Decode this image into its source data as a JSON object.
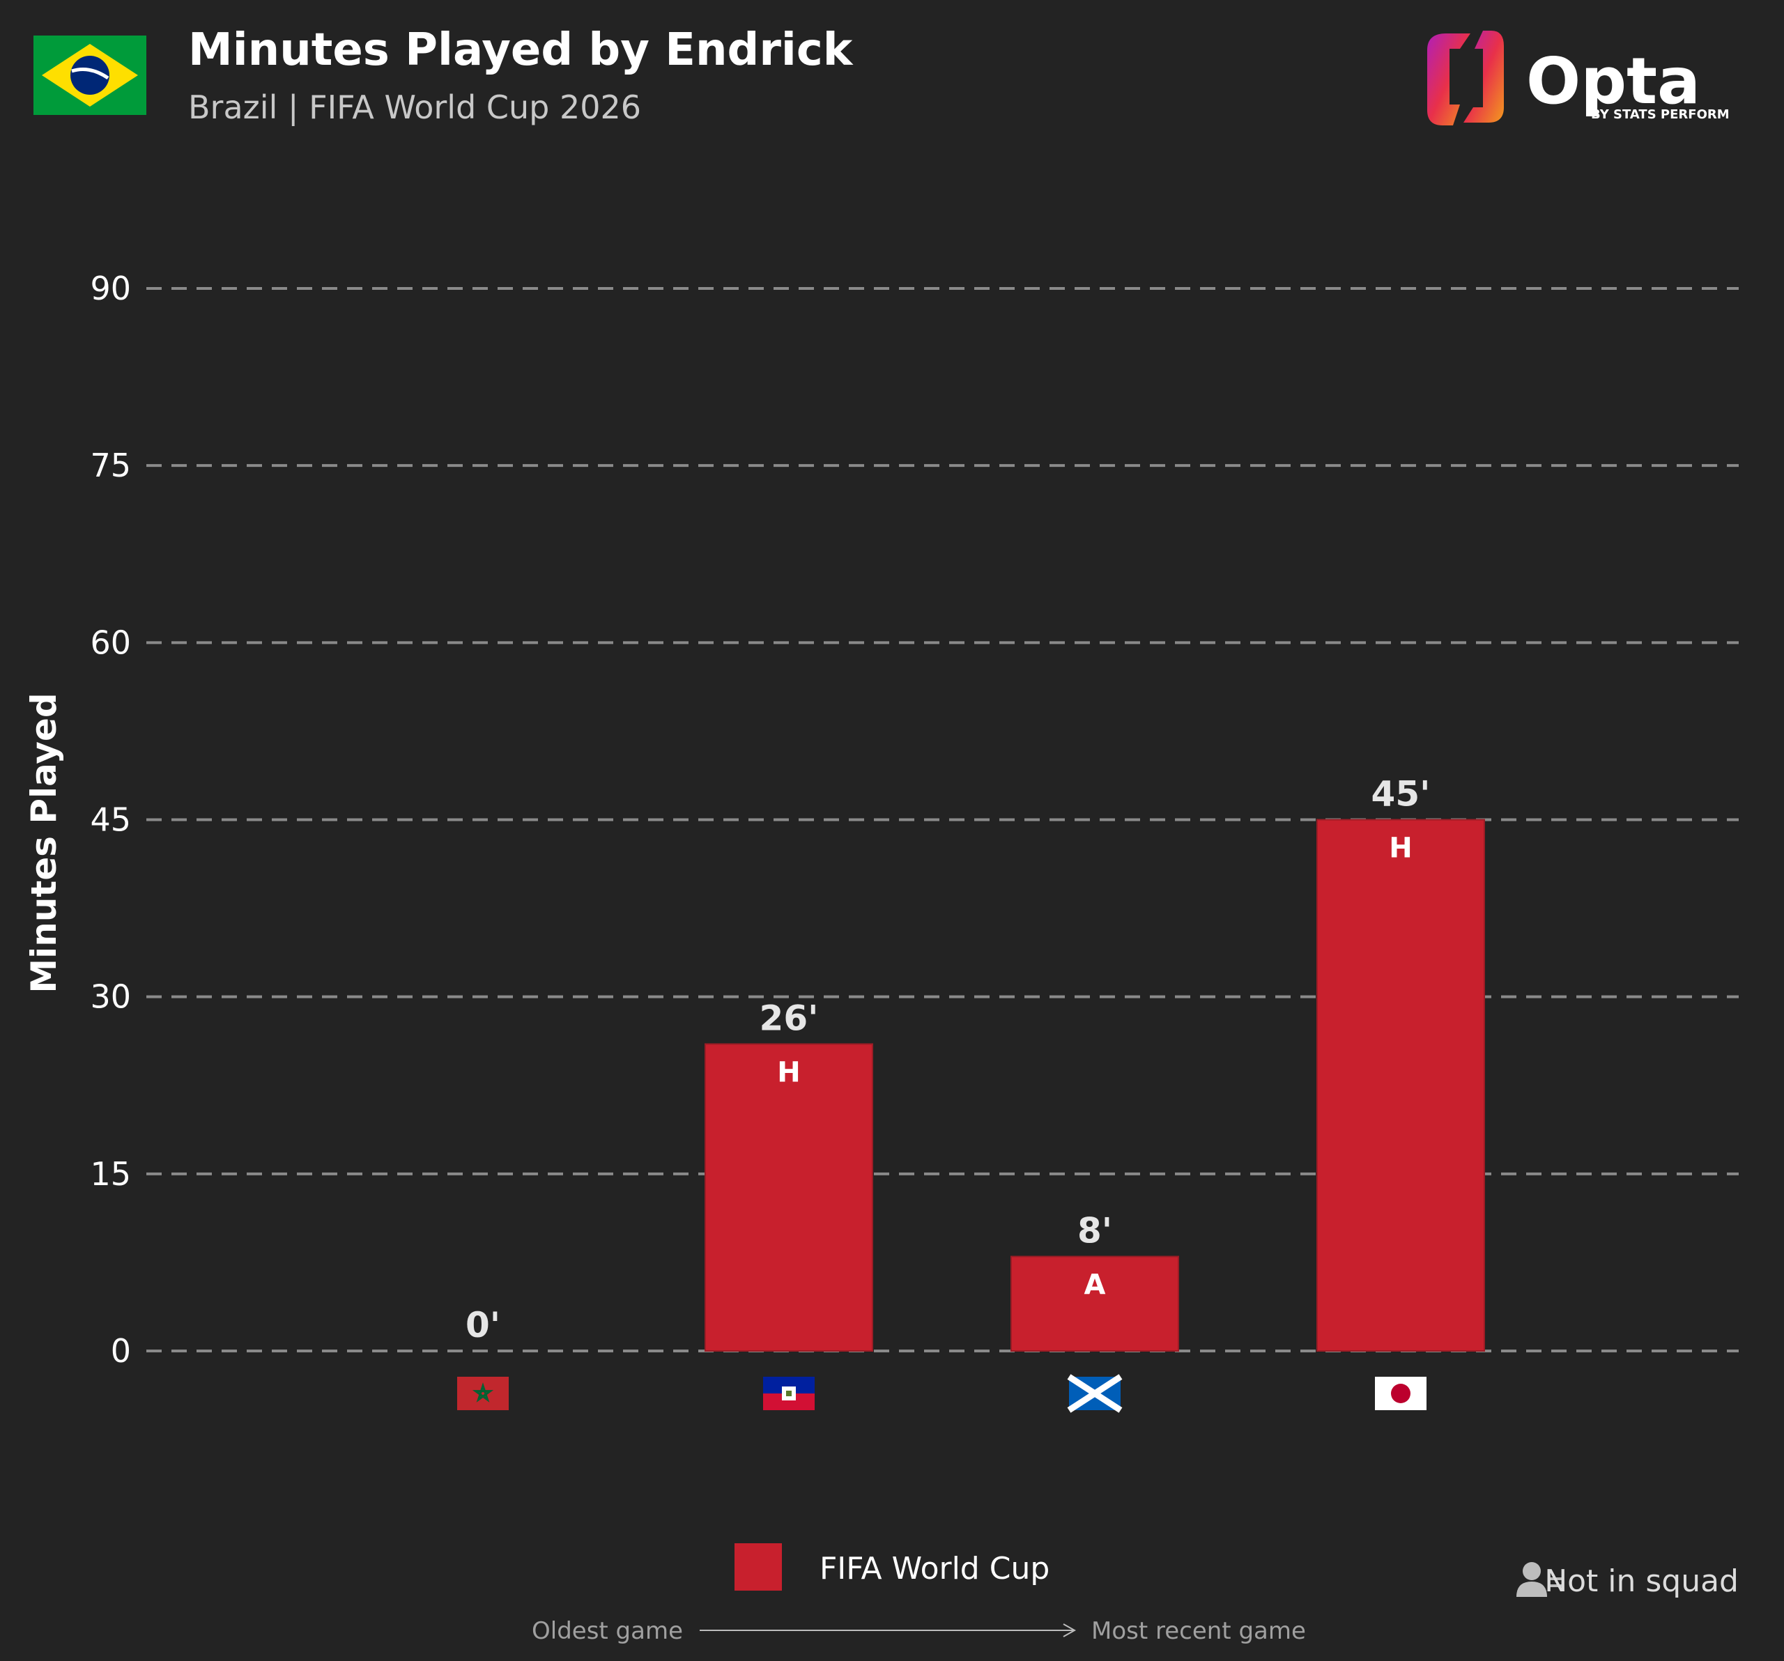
{
  "header": {
    "title": "Minutes Played by Endrick",
    "subtitle": "Brazil | FIFA World Cup 2026",
    "team_flag": "brazil-flag",
    "logo_text": "Opta",
    "logo_subtext": "BY STATS PERFORM"
  },
  "legend": {
    "competition_label": "FIFA World Cup",
    "competition_color": "#c8202d",
    "not_in_squad_label": "Not in squad",
    "not_in_squad_icon": "person-minus-icon"
  },
  "timeline": {
    "start_label": "Oldest game",
    "end_label": "Most recent game"
  },
  "colors": {
    "background": "#232323",
    "bar": "#c8202d",
    "grid": "#8a8a8a"
  },
  "chart_data": {
    "type": "bar",
    "categories": [
      "Morocco",
      "Haiti",
      "Scotland",
      "Japan"
    ],
    "values": [
      0,
      26,
      8,
      45
    ],
    "value_labels": [
      "0'",
      "26'",
      "8'",
      "45'"
    ],
    "venues": [
      "",
      "H",
      "A",
      "H"
    ],
    "flag_icons": [
      "morocco-flag",
      "haiti-flag",
      "scotland-flag",
      "japan-flag"
    ],
    "ylabel": "Minutes Played",
    "ylim": [
      0,
      90
    ],
    "yticks": [
      0,
      15,
      30,
      45,
      60,
      75,
      90
    ],
    "grid": true,
    "legend_position": "bottom"
  }
}
